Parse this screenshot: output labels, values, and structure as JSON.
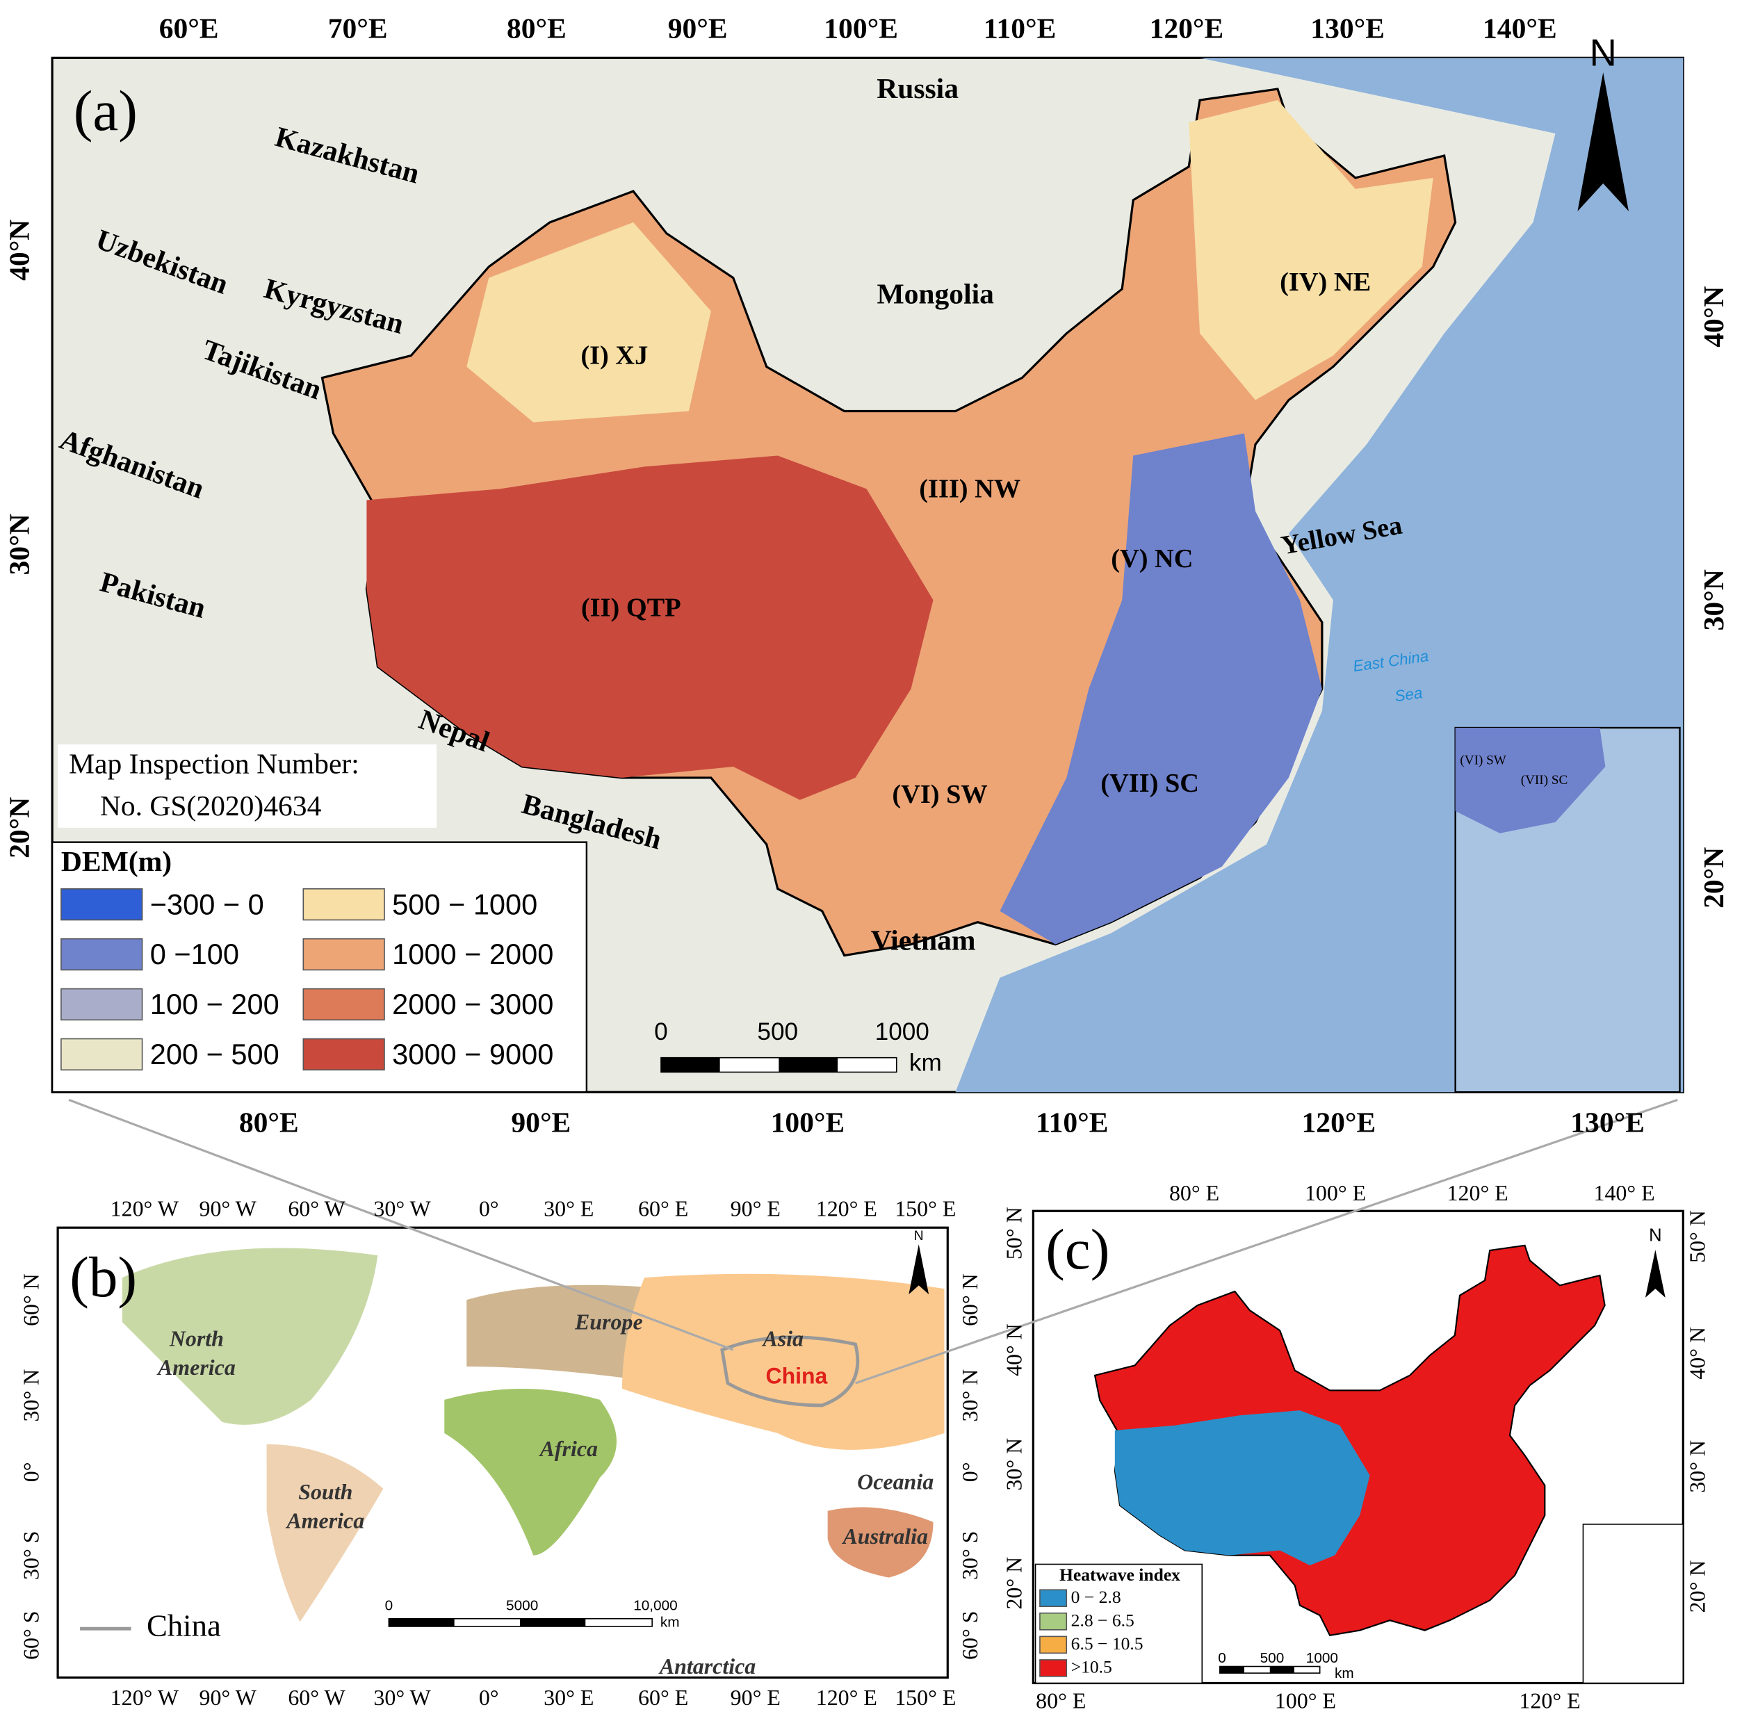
{
  "panel_a": {
    "label": "(a)",
    "north": "N",
    "top_lon_labels": [
      "60°E",
      "70°E",
      "80°E",
      "90°E",
      "100°E",
      "110°E",
      "120°E",
      "130°E",
      "140°E"
    ],
    "bottom_lon_labels": [
      "80°E",
      "90°E",
      "100°E",
      "110°E",
      "120°E",
      "130°E"
    ],
    "left_lat_labels": [
      "40°N",
      "30°N",
      "20°N"
    ],
    "right_lat_labels": [
      "40°N",
      "30°N",
      "20°N"
    ],
    "countries": [
      "Russia",
      "Kazakhstan",
      "Uzbekistan",
      "Kyrgyzstan",
      "Tajikistan",
      "Afghanistan",
      "Pakistan",
      "Nepal",
      "Bangladesh",
      "Mongolia",
      "Vietnam"
    ],
    "regions": [
      "(I) XJ",
      "(II) QTP",
      "(III) NW",
      "(IV) NE",
      "(V) NC",
      "(VI) SW",
      "(VII) SC"
    ],
    "yellow_sea": "Yellow Sea",
    "east_china_sea": [
      "East China",
      "Sea"
    ],
    "inset_regions": [
      "(VI) SW",
      "(VII) SC"
    ],
    "map_inspection": [
      "Map Inspection Number:",
      "No. GS(2020)4634"
    ],
    "legend": {
      "title": "DEM(m)",
      "items": [
        {
          "label": "−300 − 0",
          "color": "#2f5fd6"
        },
        {
          "label": "0 −100",
          "color": "#6f82cc"
        },
        {
          "label": "100 − 200",
          "color": "#a9adc9"
        },
        {
          "label": "200 − 500",
          "color": "#e8e6c6"
        },
        {
          "label": "500 − 1000",
          "color": "#f7dfa6"
        },
        {
          "label": "1000 − 2000",
          "color": "#eda576"
        },
        {
          "label": "2000 − 3000",
          "color": "#dd7a58"
        },
        {
          "label": "3000 − 9000",
          "color": "#c94a3d"
        }
      ]
    },
    "scale_bar": {
      "labels": [
        "0",
        "500",
        "1000"
      ],
      "unit": "km"
    }
  },
  "panel_b": {
    "label": "(b)",
    "north": "N",
    "top_lon_labels": [
      "120° W",
      "90° W",
      "60° W",
      "30° W",
      "0°",
      "30° E",
      "60° E",
      "90° E",
      "120° E",
      "150° E"
    ],
    "bottom_lon_labels": [
      "120° W",
      "90° W",
      "60° W",
      "30° W",
      "0°",
      "30° E",
      "60° E",
      "90° E",
      "120° E",
      "150° E"
    ],
    "left_lat_labels": [
      "60° N",
      "30° N",
      "0°",
      "30° S",
      "60° S"
    ],
    "right_lat_labels": [
      "60° N",
      "30° N",
      "0°",
      "30° S",
      "60° S"
    ],
    "continents": {
      "north_america": [
        "North",
        "America"
      ],
      "europe": "Europe",
      "asia": "Asia",
      "africa": "Africa",
      "south_america": [
        "South",
        "America"
      ],
      "oceania": "Oceania",
      "australia": "Australia",
      "antarctica": "Antarctica"
    },
    "china": "China",
    "legend": "China",
    "scale_bar": {
      "labels": [
        "0",
        "5000",
        "10,000"
      ],
      "unit": "km"
    }
  },
  "panel_c": {
    "label": "(c)",
    "north": "N",
    "top_lon_labels": [
      "80° E",
      "100° E",
      "120° E",
      "140° E"
    ],
    "bottom_lon_labels": [
      "80° E",
      "100° E",
      "120° E"
    ],
    "left_lat_labels": [
      "50° N",
      "40° N",
      "30° N",
      "20° N"
    ],
    "right_lat_labels": [
      "50° N",
      "40° N",
      "30° N",
      "20° N"
    ],
    "legend": {
      "title": "Heatwave index",
      "items": [
        {
          "label": "0 − 2.8",
          "color": "#2b8fc9"
        },
        {
          "label": "2.8 − 6.5",
          "color": "#a8cd82"
        },
        {
          "label": "6.5 − 10.5",
          "color": "#f5ad44"
        },
        {
          "label": ">10.5",
          "color": "#e8191a"
        }
      ]
    },
    "scale_bar": {
      "labels": [
        "0",
        "500",
        "1000"
      ],
      "unit": "km"
    }
  }
}
